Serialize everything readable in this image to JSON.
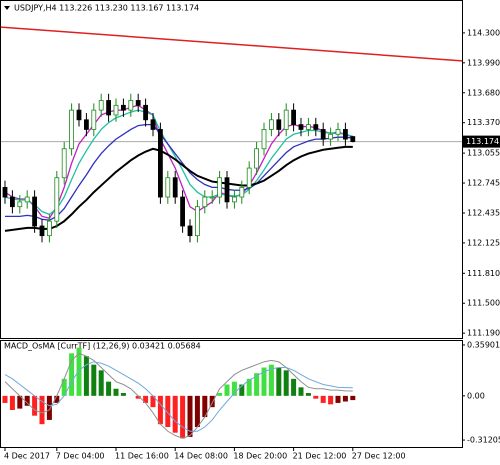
{
  "chart_data": {
    "type": "candlestick",
    "title": "USDJPY,H4  113.226 113.230 113.167 113.174",
    "ylim": [
      114.62,
      111.14
    ],
    "yticks": [
      {
        "value": 114.3,
        "label": "114.300"
      },
      {
        "value": 113.99,
        "label": "113.990"
      },
      {
        "value": 113.68,
        "label": "113.680"
      },
      {
        "value": 113.37,
        "label": "113.370"
      },
      {
        "value": 113.055,
        "label": "113.055"
      },
      {
        "value": 112.745,
        "label": "112.745"
      },
      {
        "value": 112.435,
        "label": "112.435"
      },
      {
        "value": 112.125,
        "label": "112.125"
      },
      {
        "value": 111.81,
        "label": "111.810"
      },
      {
        "value": 111.5,
        "label": "111.500"
      },
      {
        "value": 111.19,
        "label": "111.190"
      }
    ],
    "xticks": [
      {
        "value": 0,
        "label": "4 Dec 2017"
      },
      {
        "value": 7,
        "label": "7 Dec 04:00"
      },
      {
        "value": 15,
        "label": "11 Dec 16:00"
      },
      {
        "value": 23,
        "label": "14 Dec 08:00"
      },
      {
        "value": 31,
        "label": "18 Dec 20:00"
      },
      {
        "value": 39,
        "label": "21 Dec 12:00"
      },
      {
        "value": 47,
        "label": "27 Dec 12:00"
      }
    ],
    "up_color": "#1a8c1a",
    "down_color": "#000000",
    "candles": {
      "open": [
        112.7,
        112.6,
        112.5,
        112.55,
        112.6,
        112.3,
        112.2,
        112.35,
        112.8,
        113.1,
        113.5,
        113.4,
        113.3,
        113.5,
        113.6,
        113.45,
        113.55,
        113.5,
        113.6,
        113.55,
        113.4,
        113.3,
        112.6,
        112.8,
        112.6,
        112.3,
        112.2,
        112.5,
        112.6,
        112.6,
        112.8,
        112.55,
        112.6,
        112.7,
        112.9,
        113.1,
        113.3,
        113.4,
        113.3,
        113.5,
        113.35,
        113.3,
        113.35,
        113.3,
        113.2,
        113.25,
        113.3,
        113.226
      ],
      "high": [
        112.77,
        112.67,
        112.62,
        112.67,
        112.67,
        112.37,
        112.42,
        112.87,
        113.17,
        113.57,
        113.57,
        113.47,
        113.57,
        113.67,
        113.67,
        113.62,
        113.62,
        113.67,
        113.67,
        113.62,
        113.47,
        113.37,
        112.87,
        112.87,
        112.67,
        112.37,
        112.57,
        112.67,
        112.67,
        112.87,
        112.87,
        112.67,
        112.77,
        112.97,
        113.17,
        113.37,
        113.47,
        113.47,
        113.57,
        113.57,
        113.42,
        113.42,
        113.42,
        113.37,
        113.32,
        113.37,
        113.37,
        113.23
      ],
      "low": [
        112.53,
        112.43,
        112.43,
        112.48,
        112.23,
        112.13,
        112.13,
        112.28,
        112.73,
        113.03,
        113.33,
        113.23,
        113.23,
        113.43,
        113.38,
        113.38,
        113.43,
        113.43,
        113.48,
        113.33,
        113.23,
        112.53,
        112.53,
        112.53,
        112.23,
        112.13,
        112.13,
        112.43,
        112.53,
        112.53,
        112.48,
        112.48,
        112.53,
        112.63,
        112.83,
        113.03,
        113.23,
        113.23,
        113.23,
        113.28,
        113.23,
        113.23,
        113.23,
        113.13,
        113.13,
        113.18,
        113.13,
        113.167
      ],
      "close": [
        112.6,
        112.5,
        112.55,
        112.6,
        112.3,
        112.2,
        112.35,
        112.8,
        113.1,
        113.5,
        113.4,
        113.3,
        113.5,
        113.6,
        113.45,
        113.55,
        113.5,
        113.6,
        113.55,
        113.4,
        113.3,
        112.6,
        112.8,
        112.6,
        112.3,
        112.2,
        112.5,
        112.6,
        112.6,
        112.8,
        112.55,
        112.6,
        112.7,
        112.9,
        113.1,
        113.3,
        113.4,
        113.3,
        113.5,
        113.35,
        113.3,
        113.35,
        113.3,
        113.2,
        113.25,
        113.3,
        113.2,
        113.174
      ]
    },
    "last_price_index": 47,
    "trendline": {
      "color": "#e02020",
      "values": [
        114.36,
        114.01
      ]
    },
    "series": [
      {
        "color": "#c020c0",
        "values": [
          112.65,
          112.6,
          112.58,
          112.58,
          112.5,
          112.4,
          112.38,
          112.5,
          112.7,
          112.95,
          113.15,
          113.25,
          113.35,
          113.45,
          113.48,
          113.5,
          113.5,
          113.53,
          113.55,
          113.5,
          113.45,
          113.2,
          113.05,
          112.9,
          112.7,
          112.5,
          112.45,
          112.5,
          112.55,
          112.65,
          112.62,
          112.6,
          112.63,
          112.72,
          112.85,
          113.0,
          113.15,
          113.25,
          113.33,
          113.35,
          113.33,
          113.33,
          113.32,
          113.28,
          113.26,
          113.27,
          113.25,
          113.22
        ]
      },
      {
        "color": "#20c0a0",
        "values": [
          112.6,
          112.58,
          112.57,
          112.57,
          112.52,
          112.45,
          112.42,
          112.48,
          112.6,
          112.78,
          112.95,
          113.08,
          113.2,
          113.3,
          113.37,
          113.42,
          113.45,
          113.48,
          113.5,
          113.48,
          113.45,
          113.28,
          113.15,
          113.02,
          112.88,
          112.73,
          112.65,
          112.6,
          112.6,
          112.63,
          112.62,
          112.61,
          112.62,
          112.68,
          112.77,
          112.88,
          113.0,
          113.1,
          113.2,
          113.25,
          113.27,
          113.29,
          113.29,
          113.27,
          113.26,
          113.26,
          113.25,
          113.23
        ]
      },
      {
        "color": "#3030c0",
        "values": [
          112.4,
          112.4,
          112.4,
          112.41,
          112.4,
          112.37,
          112.36,
          112.4,
          112.48,
          112.6,
          112.72,
          112.83,
          112.95,
          113.05,
          113.13,
          113.2,
          113.25,
          113.3,
          113.34,
          113.35,
          113.35,
          113.25,
          113.15,
          113.05,
          112.95,
          112.85,
          112.78,
          112.73,
          112.7,
          112.7,
          112.68,
          112.67,
          112.67,
          112.69,
          112.74,
          112.82,
          112.9,
          112.98,
          113.06,
          113.12,
          113.15,
          113.18,
          113.2,
          113.2,
          113.21,
          113.22,
          113.22,
          113.21
        ]
      },
      {
        "color": "#000000",
        "values": [
          112.25,
          112.26,
          112.27,
          112.28,
          112.28,
          112.27,
          112.27,
          112.3,
          112.35,
          112.42,
          112.5,
          112.57,
          112.65,
          112.72,
          112.79,
          112.86,
          112.92,
          112.98,
          113.03,
          113.07,
          113.1,
          113.08,
          113.04,
          112.99,
          112.93,
          112.87,
          112.82,
          112.79,
          112.76,
          112.75,
          112.74,
          112.73,
          112.72,
          112.72,
          112.74,
          112.77,
          112.82,
          112.87,
          112.93,
          112.98,
          113.02,
          113.05,
          113.07,
          113.09,
          113.1,
          113.11,
          113.12,
          113.12
        ]
      }
    ],
    "macd": {
      "title": "MACD_OsMA [CurrTF] (12,26,9) 0.03421 0.05684",
      "ylim": [
        0.387,
        -0.361
      ],
      "yticks": [
        0.35901,
        {
          "value": 0,
          "label": "0.00"
        },
        -0.31205
      ],
      "bar_colors": {
        "up_rising": "#40e040",
        "up_falling": "#108010",
        "down_falling": "#ff2020",
        "down_rising": "#800000"
      },
      "values": [
        -0.05,
        -0.1,
        -0.09,
        -0.07,
        -0.14,
        -0.2,
        -0.17,
        -0.05,
        0.12,
        0.3,
        0.34,
        0.28,
        0.22,
        0.18,
        0.1,
        0.05,
        0.02,
        0.0,
        -0.02,
        -0.05,
        -0.08,
        -0.2,
        -0.22,
        -0.26,
        -0.3,
        -0.29,
        -0.22,
        -0.15,
        -0.08,
        0.02,
        0.08,
        0.1,
        0.08,
        0.12,
        0.16,
        0.2,
        0.22,
        0.2,
        0.18,
        0.12,
        0.06,
        0.02,
        -0.02,
        -0.05,
        -0.06,
        -0.05,
        -0.04,
        -0.03
      ],
      "lines": [
        {
          "color": "#909090",
          "values": [
            0.1,
            0.05,
            0.0,
            -0.05,
            -0.1,
            -0.12,
            -0.1,
            0.0,
            0.12,
            0.25,
            0.3,
            0.28,
            0.25,
            0.2,
            0.15,
            0.1,
            0.08,
            0.05,
            0.0,
            -0.05,
            -0.12,
            -0.2,
            -0.25,
            -0.28,
            -0.3,
            -0.28,
            -0.22,
            -0.15,
            -0.05,
            0.05,
            0.1,
            0.15,
            0.18,
            0.2,
            0.22,
            0.24,
            0.25,
            0.24,
            0.2,
            0.15,
            0.1,
            0.06,
            0.05,
            0.05,
            0.04,
            0.04,
            0.035,
            0.034
          ]
        },
        {
          "color": "#6fa8dc",
          "values": [
            0.15,
            0.12,
            0.08,
            0.04,
            0.0,
            -0.04,
            -0.07,
            -0.06,
            0.0,
            0.1,
            0.18,
            0.22,
            0.24,
            0.23,
            0.21,
            0.18,
            0.15,
            0.12,
            0.09,
            0.05,
            0.0,
            -0.06,
            -0.12,
            -0.18,
            -0.22,
            -0.25,
            -0.25,
            -0.22,
            -0.17,
            -0.1,
            -0.04,
            0.02,
            0.07,
            0.11,
            0.14,
            0.17,
            0.19,
            0.2,
            0.2,
            0.18,
            0.15,
            0.12,
            0.1,
            0.08,
            0.07,
            0.06,
            0.058,
            0.057
          ]
        }
      ]
    }
  }
}
